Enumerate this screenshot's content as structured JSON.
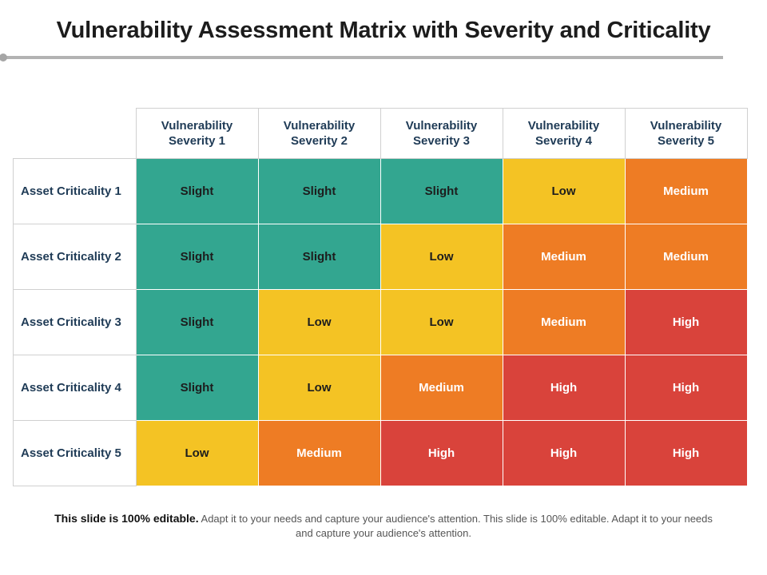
{
  "title": "Vulnerability Assessment Matrix with Severity and Criticality",
  "matrix": {
    "columns": [
      {
        "line1": "Vulnerability",
        "line2": "Severity 1"
      },
      {
        "line1": "Vulnerability",
        "line2": "Severity 2"
      },
      {
        "line1": "Vulnerability",
        "line2": "Severity 3"
      },
      {
        "line1": "Vulnerability",
        "line2": "Severity 4"
      },
      {
        "line1": "Vulnerability",
        "line2": "Severity 5"
      }
    ],
    "rows": [
      {
        "label": "Asset Criticality 1",
        "cells": [
          "Slight",
          "Slight",
          "Slight",
          "Low",
          "Medium"
        ]
      },
      {
        "label": "Asset Criticality 2",
        "cells": [
          "Slight",
          "Slight",
          "Low",
          "Medium",
          "Medium"
        ]
      },
      {
        "label": "Asset Criticality 3",
        "cells": [
          "Slight",
          "Low",
          "Low",
          "Medium",
          "High"
        ]
      },
      {
        "label": "Asset Criticality 4",
        "cells": [
          "Slight",
          "Low",
          "Medium",
          "High",
          "High"
        ]
      },
      {
        "label": "Asset Criticality 5",
        "cells": [
          "Low",
          "Medium",
          "High",
          "High",
          "High"
        ]
      }
    ],
    "level_colors": {
      "Slight": "#33a690",
      "Low": "#f4c324",
      "Medium": "#ee7c24",
      "High": "#d9433b"
    }
  },
  "footer": {
    "bold": "This slide is 100% editable.",
    "text": " Adapt it to your needs and capture your audience's attention. This slide is 100% editable. Adapt it to your needs and capture your audience's attention."
  }
}
